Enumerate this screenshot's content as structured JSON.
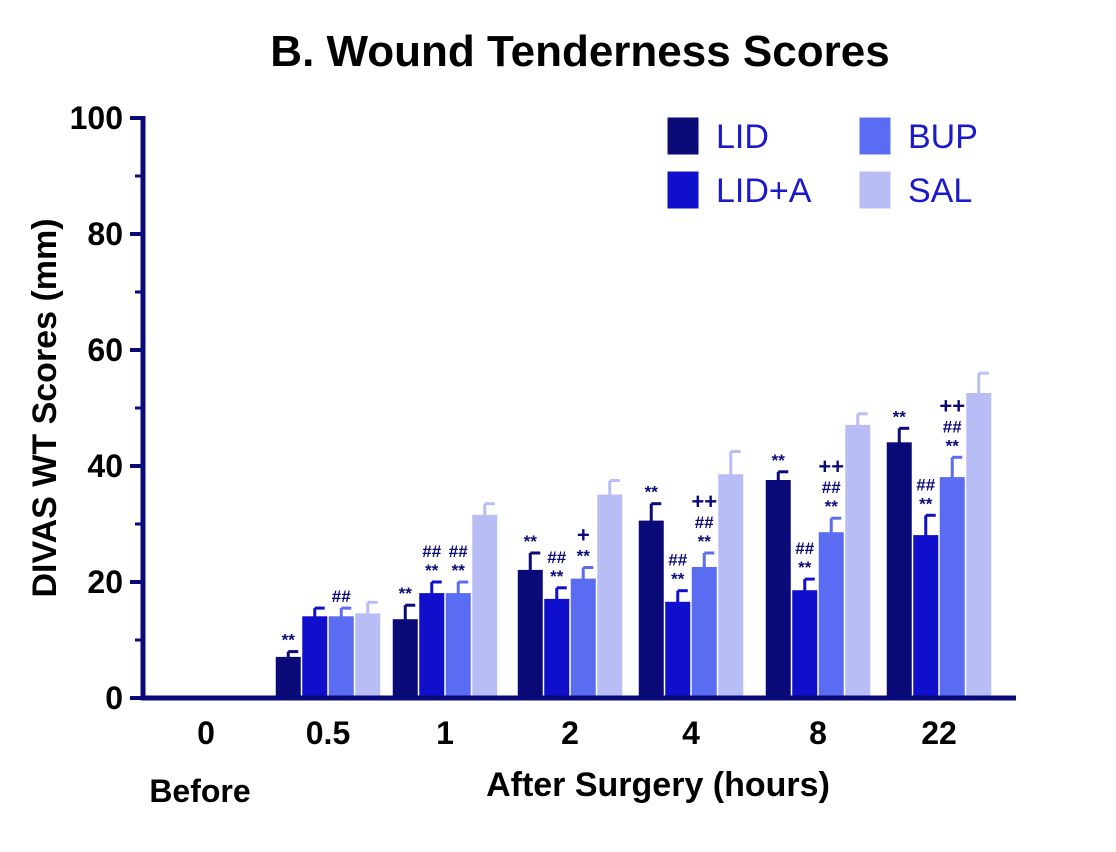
{
  "chart_data": {
    "type": "bar",
    "title": "B. Wound Tenderness Scores",
    "xlabel": "After Surgery (hours)",
    "ylabel": "DIVAS WT Scores (mm)",
    "ylim": [
      0,
      100
    ],
    "yticks": [
      "0",
      "20",
      "40",
      "60",
      "80",
      "100"
    ],
    "categories": [
      "0",
      "0.5",
      "1",
      "2",
      "4",
      "8",
      "22"
    ],
    "before_label": "Before",
    "legend_position": "top-right",
    "series": [
      {
        "name": "LID",
        "color": "#0a0a78",
        "values": [
          0,
          7,
          13.5,
          22,
          30.5,
          37.5,
          44
        ],
        "errors": [
          0,
          1,
          2.5,
          3,
          3,
          1.5,
          2.5
        ]
      },
      {
        "name": "LID+A",
        "color": "#1010cc",
        "values": [
          0,
          14,
          18,
          17,
          16.5,
          18.5,
          28
        ],
        "errors": [
          0,
          1.5,
          2,
          2,
          2,
          2,
          3.5
        ]
      },
      {
        "name": "BUP",
        "color": "#5a6cf2",
        "values": [
          0,
          14,
          18,
          20.5,
          22.5,
          28.5,
          38
        ],
        "errors": [
          0,
          1.5,
          2,
          2,
          2.5,
          2.5,
          3.5
        ]
      },
      {
        "name": "SAL",
        "color": "#b8bef5",
        "values": [
          0,
          14.5,
          31.5,
          35,
          38.5,
          47,
          52.5
        ],
        "errors": [
          0,
          2,
          2,
          2.5,
          4,
          2,
          3.5
        ]
      }
    ],
    "annotations": [
      {
        "category": "0.5",
        "series": "LID",
        "lines": [
          "**"
        ]
      },
      {
        "category": "0.5",
        "series": "BUP",
        "lines": [
          "##"
        ]
      },
      {
        "category": "1",
        "series": "LID",
        "lines": [
          "**"
        ]
      },
      {
        "category": "1",
        "series": "LID+A",
        "lines": [
          "##",
          "**"
        ]
      },
      {
        "category": "1",
        "series": "BUP",
        "lines": [
          "##",
          "**"
        ]
      },
      {
        "category": "2",
        "series": "LID",
        "lines": [
          "**"
        ]
      },
      {
        "category": "2",
        "series": "LID+A",
        "lines": [
          "##",
          "**"
        ]
      },
      {
        "category": "2",
        "series": "BUP",
        "lines": [
          "+",
          "**"
        ]
      },
      {
        "category": "4",
        "series": "LID",
        "lines": [
          "**"
        ]
      },
      {
        "category": "4",
        "series": "LID+A",
        "lines": [
          "##",
          "**"
        ]
      },
      {
        "category": "4",
        "series": "BUP",
        "lines": [
          "++",
          "##",
          "**"
        ]
      },
      {
        "category": "8",
        "series": "LID",
        "lines": [
          "**"
        ]
      },
      {
        "category": "8",
        "series": "LID+A",
        "lines": [
          "##",
          "**"
        ]
      },
      {
        "category": "8",
        "series": "BUP",
        "lines": [
          "++",
          "##",
          "**"
        ]
      },
      {
        "category": "22",
        "series": "LID",
        "lines": [
          "**"
        ]
      },
      {
        "category": "22",
        "series": "LID+A",
        "lines": [
          "##",
          "**"
        ]
      },
      {
        "category": "22",
        "series": "BUP",
        "lines": [
          "++",
          "##",
          "**"
        ]
      }
    ],
    "colors": {
      "axis": "#0a0a78",
      "text": "#000000",
      "annotation": "#0a0a78",
      "legend_text": "#1a1acc"
    }
  }
}
